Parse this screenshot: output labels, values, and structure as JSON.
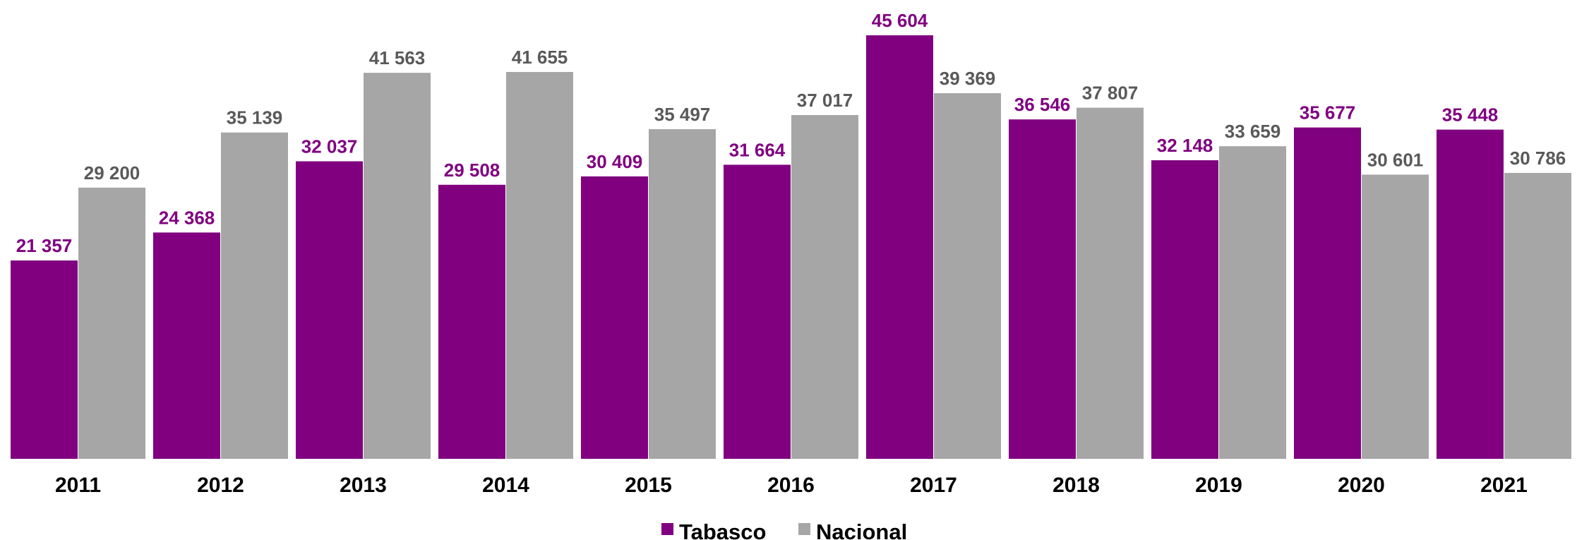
{
  "chart_data": {
    "type": "bar",
    "categories": [
      "2011",
      "2012",
      "2013",
      "2014",
      "2015",
      "2016",
      "2017",
      "2018",
      "2019",
      "2020",
      "2021"
    ],
    "series": [
      {
        "name": "Tabasco",
        "color": "#800080",
        "values": [
          21357,
          24368,
          32037,
          29508,
          30409,
          31664,
          45604,
          36546,
          32148,
          35677,
          35448
        ],
        "labels": [
          "21 357",
          "24 368",
          "32 037",
          "29 508",
          "30 409",
          "31 664",
          "45 604",
          "36 546",
          "32 148",
          "35 677",
          "35 448"
        ]
      },
      {
        "name": "Nacional",
        "color": "#A6A6A6",
        "values": [
          29200,
          35139,
          41563,
          41655,
          35497,
          37017,
          39369,
          37807,
          33659,
          30601,
          30786
        ],
        "labels": [
          "29 200",
          "35 139",
          "41 563",
          "41 655",
          "35 497",
          "37 017",
          "39 369",
          "37 807",
          "33 659",
          "30 601",
          "30 786"
        ]
      }
    ],
    "title": "",
    "xlabel": "",
    "ylabel": "",
    "ylim": [
      0,
      45604
    ],
    "grid": false,
    "legend": "bottom-center",
    "label_colors": {
      "Tabasco": "#800080",
      "Nacional": "#595959"
    }
  }
}
